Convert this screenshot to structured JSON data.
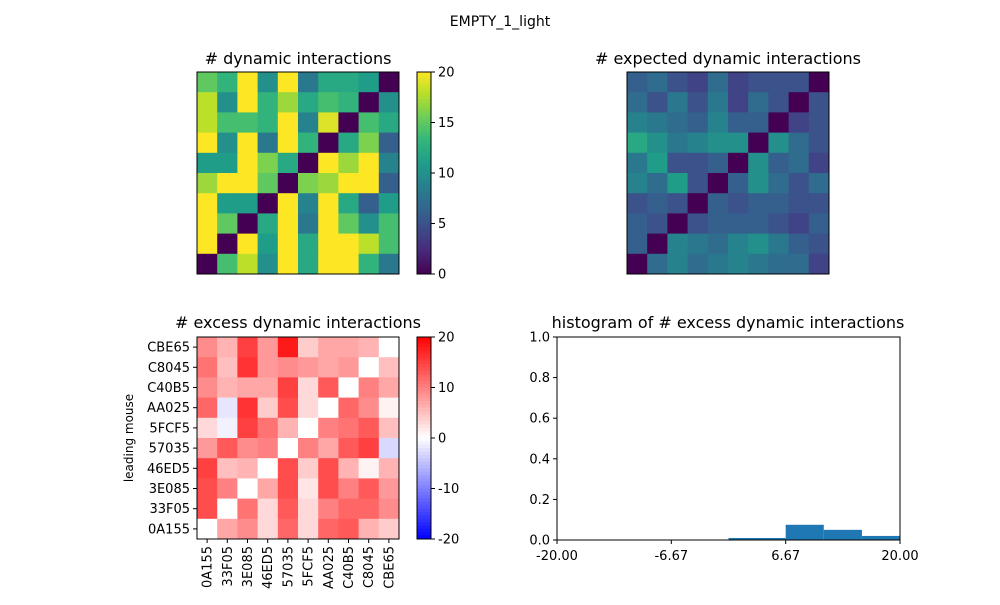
{
  "figure": {
    "suptitle": "EMPTY_1_light"
  },
  "chart_data": [
    {
      "id": "dynamic",
      "type": "heatmap",
      "title": "# dynamic interactions",
      "colormap": "viridis",
      "clim": [
        0,
        20
      ],
      "colorbar_ticks": [
        0,
        5,
        10,
        15,
        20
      ],
      "show_axis_ticks": false,
      "matrix": [
        [
          15,
          13,
          20,
          10,
          20,
          8,
          12,
          12,
          11,
          0
        ],
        [
          18,
          10,
          20,
          13,
          17,
          12,
          14,
          13,
          0,
          10
        ],
        [
          18,
          14,
          14,
          13,
          20,
          9,
          19,
          0,
          14,
          12
        ],
        [
          20,
          10,
          20,
          8,
          20,
          13,
          0,
          12,
          16,
          6
        ],
        [
          11,
          11,
          20,
          16,
          12,
          0,
          20,
          17,
          20,
          9
        ],
        [
          17,
          20,
          20,
          15,
          0,
          16,
          17,
          20,
          20,
          6
        ],
        [
          20,
          11,
          11,
          0,
          20,
          9,
          20,
          12,
          6,
          11
        ],
        [
          20,
          15,
          0,
          12,
          20,
          8,
          20,
          15,
          10,
          14
        ],
        [
          20,
          0,
          20,
          11,
          20,
          12,
          20,
          20,
          18,
          14
        ],
        [
          0,
          14,
          18,
          10,
          20,
          12,
          20,
          20,
          13,
          8
        ]
      ]
    },
    {
      "id": "expected",
      "type": "heatmap",
      "title": "# expected dynamic interactions",
      "colormap": "viridis",
      "clim": [
        0,
        20
      ],
      "show_axis_ticks": false,
      "matrix": [
        [
          6,
          7,
          5,
          4,
          7,
          4,
          5,
          5,
          5,
          0
        ],
        [
          7,
          5,
          8,
          5,
          8,
          4,
          7,
          5,
          0,
          5
        ],
        [
          9,
          8,
          7,
          6,
          9,
          6,
          6,
          0,
          4,
          5
        ],
        [
          12,
          10,
          8,
          9,
          10,
          10,
          0,
          10,
          7,
          5
        ],
        [
          8,
          11,
          5,
          5,
          6,
          0,
          10,
          6,
          7,
          4
        ],
        [
          9,
          7,
          11,
          5,
          0,
          6,
          10,
          7,
          5,
          7
        ],
        [
          5,
          6,
          5,
          0,
          6,
          5,
          6,
          6,
          5,
          5
        ],
        [
          6,
          5,
          0,
          5,
          6,
          6,
          6,
          5,
          4,
          6
        ],
        [
          6,
          0,
          9,
          8,
          7,
          9,
          10,
          8,
          6,
          5
        ],
        [
          0,
          7,
          9,
          7,
          8,
          9,
          8,
          7,
          7,
          4
        ]
      ]
    },
    {
      "id": "excess",
      "type": "heatmap",
      "title": "# excess dynamic interactions",
      "colormap": "bwr",
      "clim": [
        -20,
        20
      ],
      "colorbar_ticks": [
        -20,
        -10,
        0,
        10,
        20
      ],
      "ylabel": "leading mouse",
      "x_tick_labels": [
        "0A155",
        "33F05",
        "3E085",
        "46ED5",
        "57035",
        "5FCF5",
        "AA025",
        "C40B5",
        "C8045",
        "CBE65"
      ],
      "y_tick_labels_top_to_bottom": [
        "CBE65",
        "C8045",
        "C40B5",
        "AA025",
        "5FCF5",
        "57035",
        "46ED5",
        "3E085",
        "33F05",
        "0A155"
      ],
      "matrix": [
        [
          9,
          6,
          15,
          8,
          18,
          4,
          7,
          7,
          6,
          0
        ],
        [
          11,
          5,
          16,
          8,
          9,
          8,
          7,
          8,
          0,
          5
        ],
        [
          9,
          6,
          7,
          7,
          15,
          3,
          13,
          0,
          10,
          7
        ],
        [
          12,
          -2,
          16,
          4,
          14,
          3,
          0,
          12,
          9,
          1
        ],
        [
          3,
          -1,
          15,
          11,
          6,
          0,
          10,
          11,
          13,
          5
        ],
        [
          8,
          13,
          9,
          10,
          0,
          10,
          7,
          13,
          15,
          -3
        ],
        [
          15,
          5,
          6,
          0,
          14,
          4,
          14,
          6,
          1,
          6
        ],
        [
          14,
          10,
          0,
          7,
          14,
          2,
          14,
          10,
          13,
          8
        ],
        [
          14,
          0,
          11,
          3,
          13,
          3,
          10,
          12,
          12,
          9
        ],
        [
          0,
          7,
          9,
          3,
          12,
          3,
          12,
          13,
          6,
          4
        ]
      ]
    },
    {
      "id": "histogram",
      "type": "bar",
      "title": "histogram of # excess dynamic interactions",
      "xlim": [
        -20,
        20
      ],
      "ylim": [
        0,
        1
      ],
      "x_ticks": [
        "-20.00",
        "-6.67",
        "6.67",
        "20.00"
      ],
      "y_ticks": [
        "0.0",
        "0.2",
        "0.4",
        "0.6",
        "0.8",
        "1.0"
      ],
      "bar_color": "#1f77b4",
      "bins": [
        {
          "from": 0.0,
          "to": 6.67,
          "value": 0.01
        },
        {
          "from": 6.67,
          "to": 11.11,
          "value": 0.075
        },
        {
          "from": 11.11,
          "to": 15.56,
          "value": 0.05
        },
        {
          "from": 15.56,
          "to": 20.0,
          "value": 0.02
        }
      ]
    }
  ]
}
